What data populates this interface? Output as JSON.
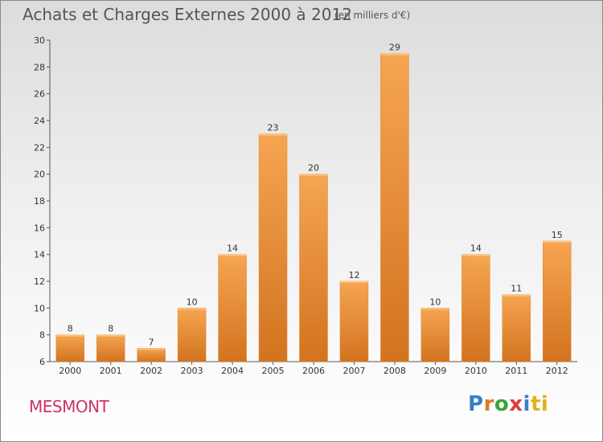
{
  "chart_data": {
    "type": "bar",
    "title": "Achats et Charges Externes 2000 à 2012",
    "unit": "(en milliers d'€)",
    "categories": [
      "2000",
      "2001",
      "2002",
      "2003",
      "2004",
      "2005",
      "2006",
      "2007",
      "2008",
      "2009",
      "2010",
      "2011",
      "2012"
    ],
    "values": [
      8,
      8,
      7,
      10,
      14,
      23,
      20,
      12,
      29,
      10,
      14,
      11,
      15
    ],
    "ylim": [
      6,
      30
    ],
    "yticks": [
      6,
      8,
      10,
      12,
      14,
      16,
      18,
      20,
      22,
      24,
      26,
      28,
      30
    ],
    "grid": false,
    "bar_color": "#f0943a"
  },
  "town": "MESMONT",
  "logo": [
    "P",
    "r",
    "o",
    "x",
    "i",
    "ti"
  ]
}
